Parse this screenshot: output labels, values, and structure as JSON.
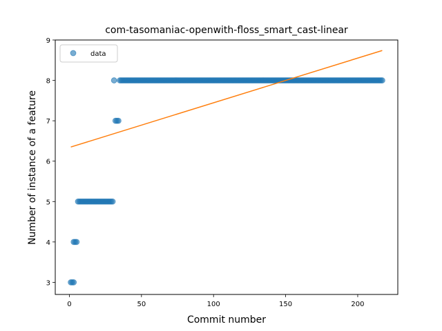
{
  "chart_data": {
    "type": "scatter",
    "title": "com-tasomaniac-openwith-floss_smart_cast-linear",
    "xlabel": "Commit number",
    "ylabel": "Number of instance of a feature",
    "xlim": [
      -9.8,
      227.8
    ],
    "ylim": [
      2.7,
      9.0
    ],
    "xticks": [
      0,
      50,
      100,
      150,
      200
    ],
    "yticks": [
      3,
      4,
      5,
      6,
      7,
      8,
      9
    ],
    "grid": false,
    "legend": {
      "position": "top-left",
      "entries": [
        "data"
      ]
    },
    "series": [
      {
        "name": "data",
        "kind": "points",
        "color": "#1f77b4",
        "segments": [
          {
            "x_from": 1,
            "x_to": 3,
            "y": 3
          },
          {
            "x_from": 3,
            "x_to": 5,
            "y": 4
          },
          {
            "x_from": 6,
            "x_to": 30,
            "y": 5
          },
          {
            "x_from": 31,
            "x_to": 31,
            "y": 8
          },
          {
            "x_from": 32,
            "x_to": 34,
            "y": 7
          },
          {
            "x_from": 35,
            "x_to": 217,
            "y": 8
          }
        ]
      },
      {
        "kind": "line",
        "color": "#ff7f0e",
        "points": [
          [
            1,
            6.35
          ],
          [
            217,
            8.74
          ]
        ]
      }
    ]
  }
}
